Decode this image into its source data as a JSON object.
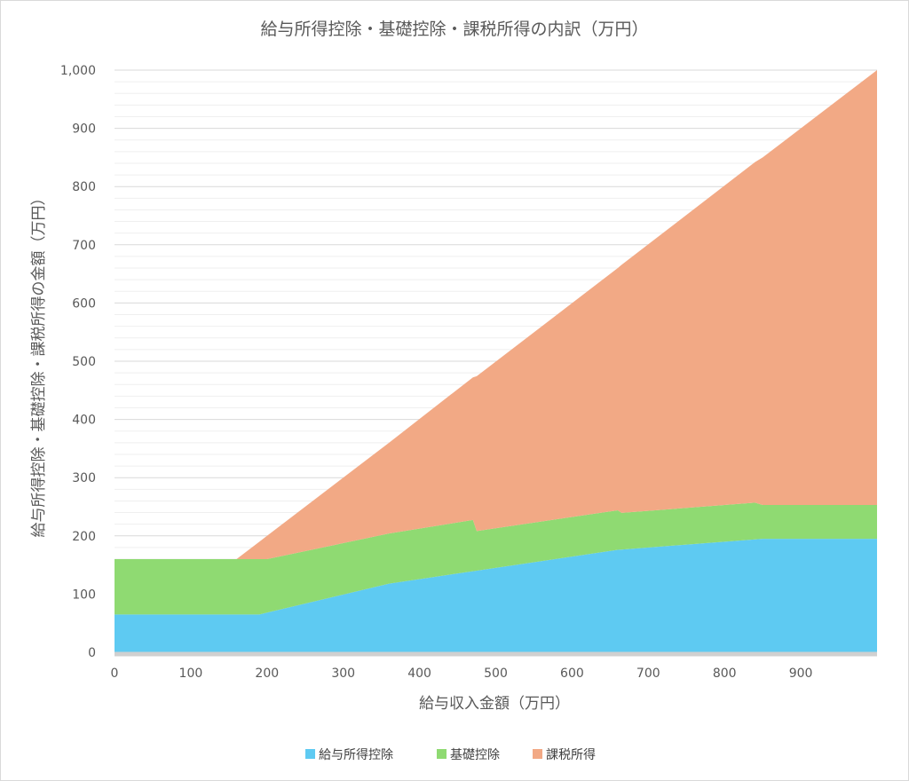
{
  "chart_data": {
    "type": "area",
    "stacked": true,
    "title": "給与所得控除・基礎控除・課税所得の内訳（万円）",
    "xlabel": "給与収入金額（万円）",
    "ylabel": "給与所得控除・基礎控除・課税所得の金額（万円）",
    "xlim": [
      0,
      1000
    ],
    "ylim": [
      0,
      1000
    ],
    "x_ticks": [
      "0",
      "100",
      "200",
      "300",
      "400",
      "500",
      "600",
      "700",
      "800",
      "900"
    ],
    "x_tick_values": [
      0,
      100,
      200,
      300,
      400,
      500,
      600,
      700,
      800,
      900
    ],
    "y_ticks": [
      "0",
      "100",
      "200",
      "300",
      "400",
      "500",
      "600",
      "700",
      "800",
      "900",
      "1,000"
    ],
    "y_tick_values": [
      0,
      100,
      200,
      300,
      400,
      500,
      600,
      700,
      800,
      900,
      1000
    ],
    "minor_gridline_step": 20,
    "legend_position": "bottom",
    "series": [
      {
        "name": "給与所得控除",
        "color": "#5ECAF2",
        "points": [
          [
            0,
            65
          ],
          [
            190,
            65
          ],
          [
            360,
            118
          ],
          [
            660,
            176
          ],
          [
            850,
            195
          ],
          [
            1000,
            195
          ]
        ]
      },
      {
        "name": "基礎控除",
        "color": "#8FDA72",
        "points": [
          [
            0,
            95
          ],
          [
            160,
            95
          ],
          [
            190,
            95
          ],
          [
            200,
            92
          ],
          [
            360,
            86
          ],
          [
            470,
            88
          ],
          [
            475,
            68
          ],
          [
            660,
            68
          ],
          [
            665,
            63
          ],
          [
            840,
            63
          ],
          [
            850,
            58
          ],
          [
            1000,
            58
          ]
        ]
      },
      {
        "name": "課税所得",
        "color": "#F2A985",
        "points": [
          [
            0,
            0
          ],
          [
            160,
            0
          ],
          [
            200,
            40
          ],
          [
            360,
            156
          ],
          [
            470,
            245
          ],
          [
            475,
            266
          ],
          [
            660,
            416
          ],
          [
            665,
            426
          ],
          [
            840,
            585
          ],
          [
            850,
            597
          ],
          [
            1000,
            747
          ]
        ]
      }
    ]
  }
}
